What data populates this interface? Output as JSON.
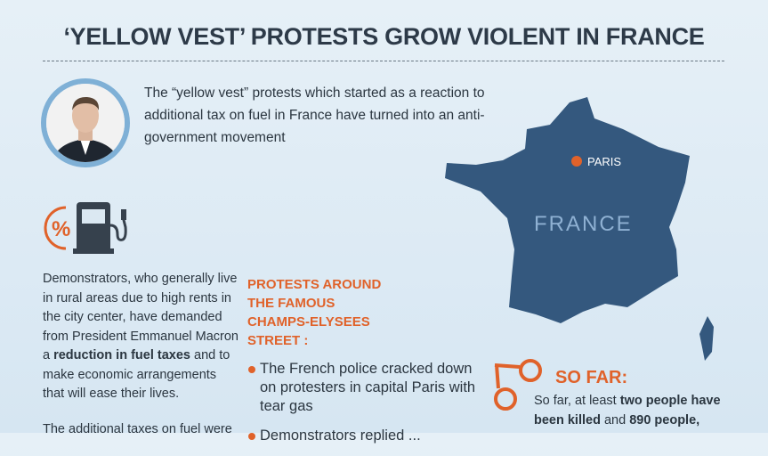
{
  "title": "‘YELLOW VEST’ PROTESTS GROW VIOLENT IN FRANCE",
  "intro": "The “yellow vest” protests which started as a reaction to additional tax on fuel in France have turned into an anti-government movement",
  "left_text": {
    "pre": "Demonstrators, who generally live in rural areas due to high rents in the city center, have demanded from President Emmanuel Macron a ",
    "bold": "reduction in fuel taxes",
    "post": " and to make economic arrangements that will ease their lives.",
    "para2": "The additional taxes on fuel were"
  },
  "protests_heading": "PROTESTS AROUND THE FAMOUS CHAMPS-ELYSEES STREET :",
  "bullets": [
    "The French police cracked down on protesters in capital Paris with tear gas",
    "Demonstrators replied ..."
  ],
  "map": {
    "country": "FRANCE",
    "city": "PARIS"
  },
  "so_far": {
    "heading": "SO FAR:",
    "t1": "So far, at least ",
    "b1": "two people have been killed",
    "t2": " and ",
    "b2": "890 people,"
  },
  "colors": {
    "orange": "#e0622a",
    "map": "#34587e",
    "title": "#2d3a48"
  }
}
